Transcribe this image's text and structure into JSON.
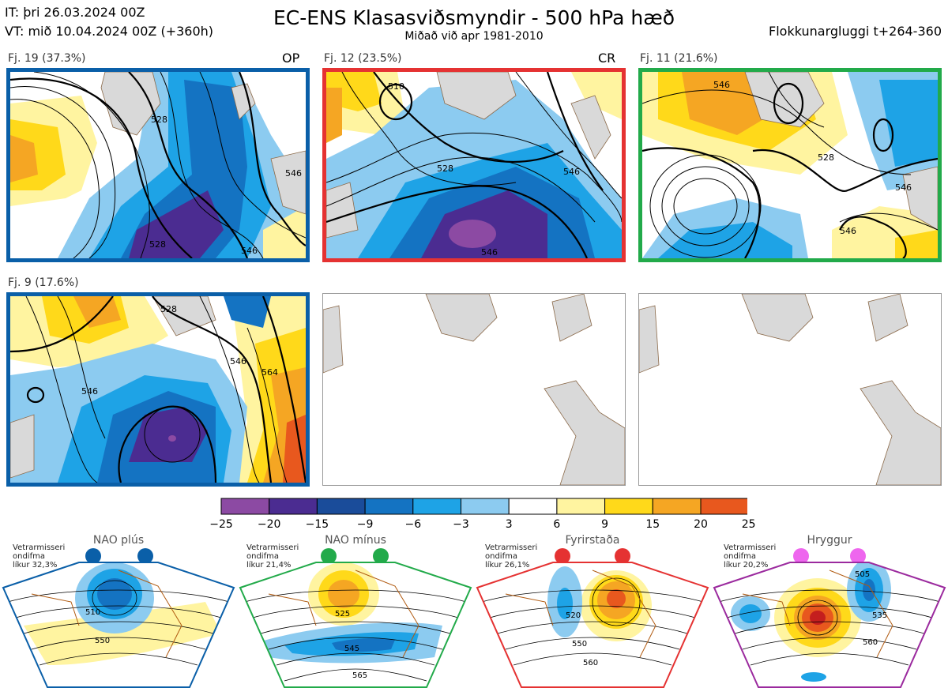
{
  "header": {
    "it_line": "IT: þri 26.03.2024 00Z",
    "vt_line": "VT: mið 10.04.2024 00Z  (+360h)",
    "title": "EC-ENS Klasasviðsmyndir - 500 hPa hæð",
    "subtitle": "Miðað við apr 1981-2010",
    "window": "Flokkunargluggi t+264-360"
  },
  "colors": {
    "land": "#d9d9d9",
    "coast": "#8b6a4a",
    "contour": "#000000",
    "clusters": [
      "#0a5fa8",
      "#e53232",
      "#22aa4a",
      "#0a5fa8"
    ]
  },
  "clusters": [
    {
      "label": "Fj. 19 (37.3%)",
      "tag": "OP",
      "contour_labels": [
        "528",
        "528",
        "546",
        "546"
      ]
    },
    {
      "label": "Fj. 12 (23.5%)",
      "tag": "CR",
      "contour_labels": [
        "510",
        "528",
        "546",
        "546"
      ]
    },
    {
      "label": "Fj. 11 (21.6%)",
      "tag": "",
      "contour_labels": [
        "528",
        "546",
        "546",
        "546"
      ]
    },
    {
      "label": "Fj. 9 (17.6%)",
      "tag": "",
      "contour_labels": [
        "528",
        "546",
        "546",
        "564"
      ]
    }
  ],
  "colorbar": {
    "ticks": [
      "−25",
      "−20",
      "−15",
      "−9",
      "−6",
      "−3",
      "3",
      "6",
      "9",
      "15",
      "20",
      "25"
    ],
    "colors": [
      "#8c4aa3",
      "#4b2c91",
      "#1a4c9a",
      "#1473c2",
      "#1ea3e6",
      "#8ccbf0",
      "#ffffff",
      "#fff4a0",
      "#ffd91a",
      "#f5a623",
      "#e8581e",
      "#c41e1e",
      "#a00d0d"
    ]
  },
  "regimes": [
    {
      "name": "NAO plús",
      "info": [
        "Vetrarmisseri",
        "ondifma",
        "líkur 32,3%"
      ],
      "color": "#0a5fa8",
      "labels": [
        "510",
        "550"
      ]
    },
    {
      "name": "NAO mínus",
      "info": [
        "Vetrarmisseri",
        "ondifma",
        "líkur 21,4%"
      ],
      "color": "#22aa4a",
      "labels": [
        "525",
        "545",
        "565"
      ]
    },
    {
      "name": "Fyrirstaða",
      "info": [
        "Vetrarmisseri",
        "ondifma",
        "líkur 26,1%"
      ],
      "color": "#e53232",
      "labels": [
        "520",
        "550",
        "560"
      ]
    },
    {
      "name": "Hryggur",
      "info": [
        "Vetrarmisseri",
        "ondifma",
        "líkur 20,2%"
      ],
      "color": "#9b2a9e",
      "dot_color": "#ee66ee",
      "labels": [
        "505",
        "535",
        "560"
      ]
    }
  ]
}
